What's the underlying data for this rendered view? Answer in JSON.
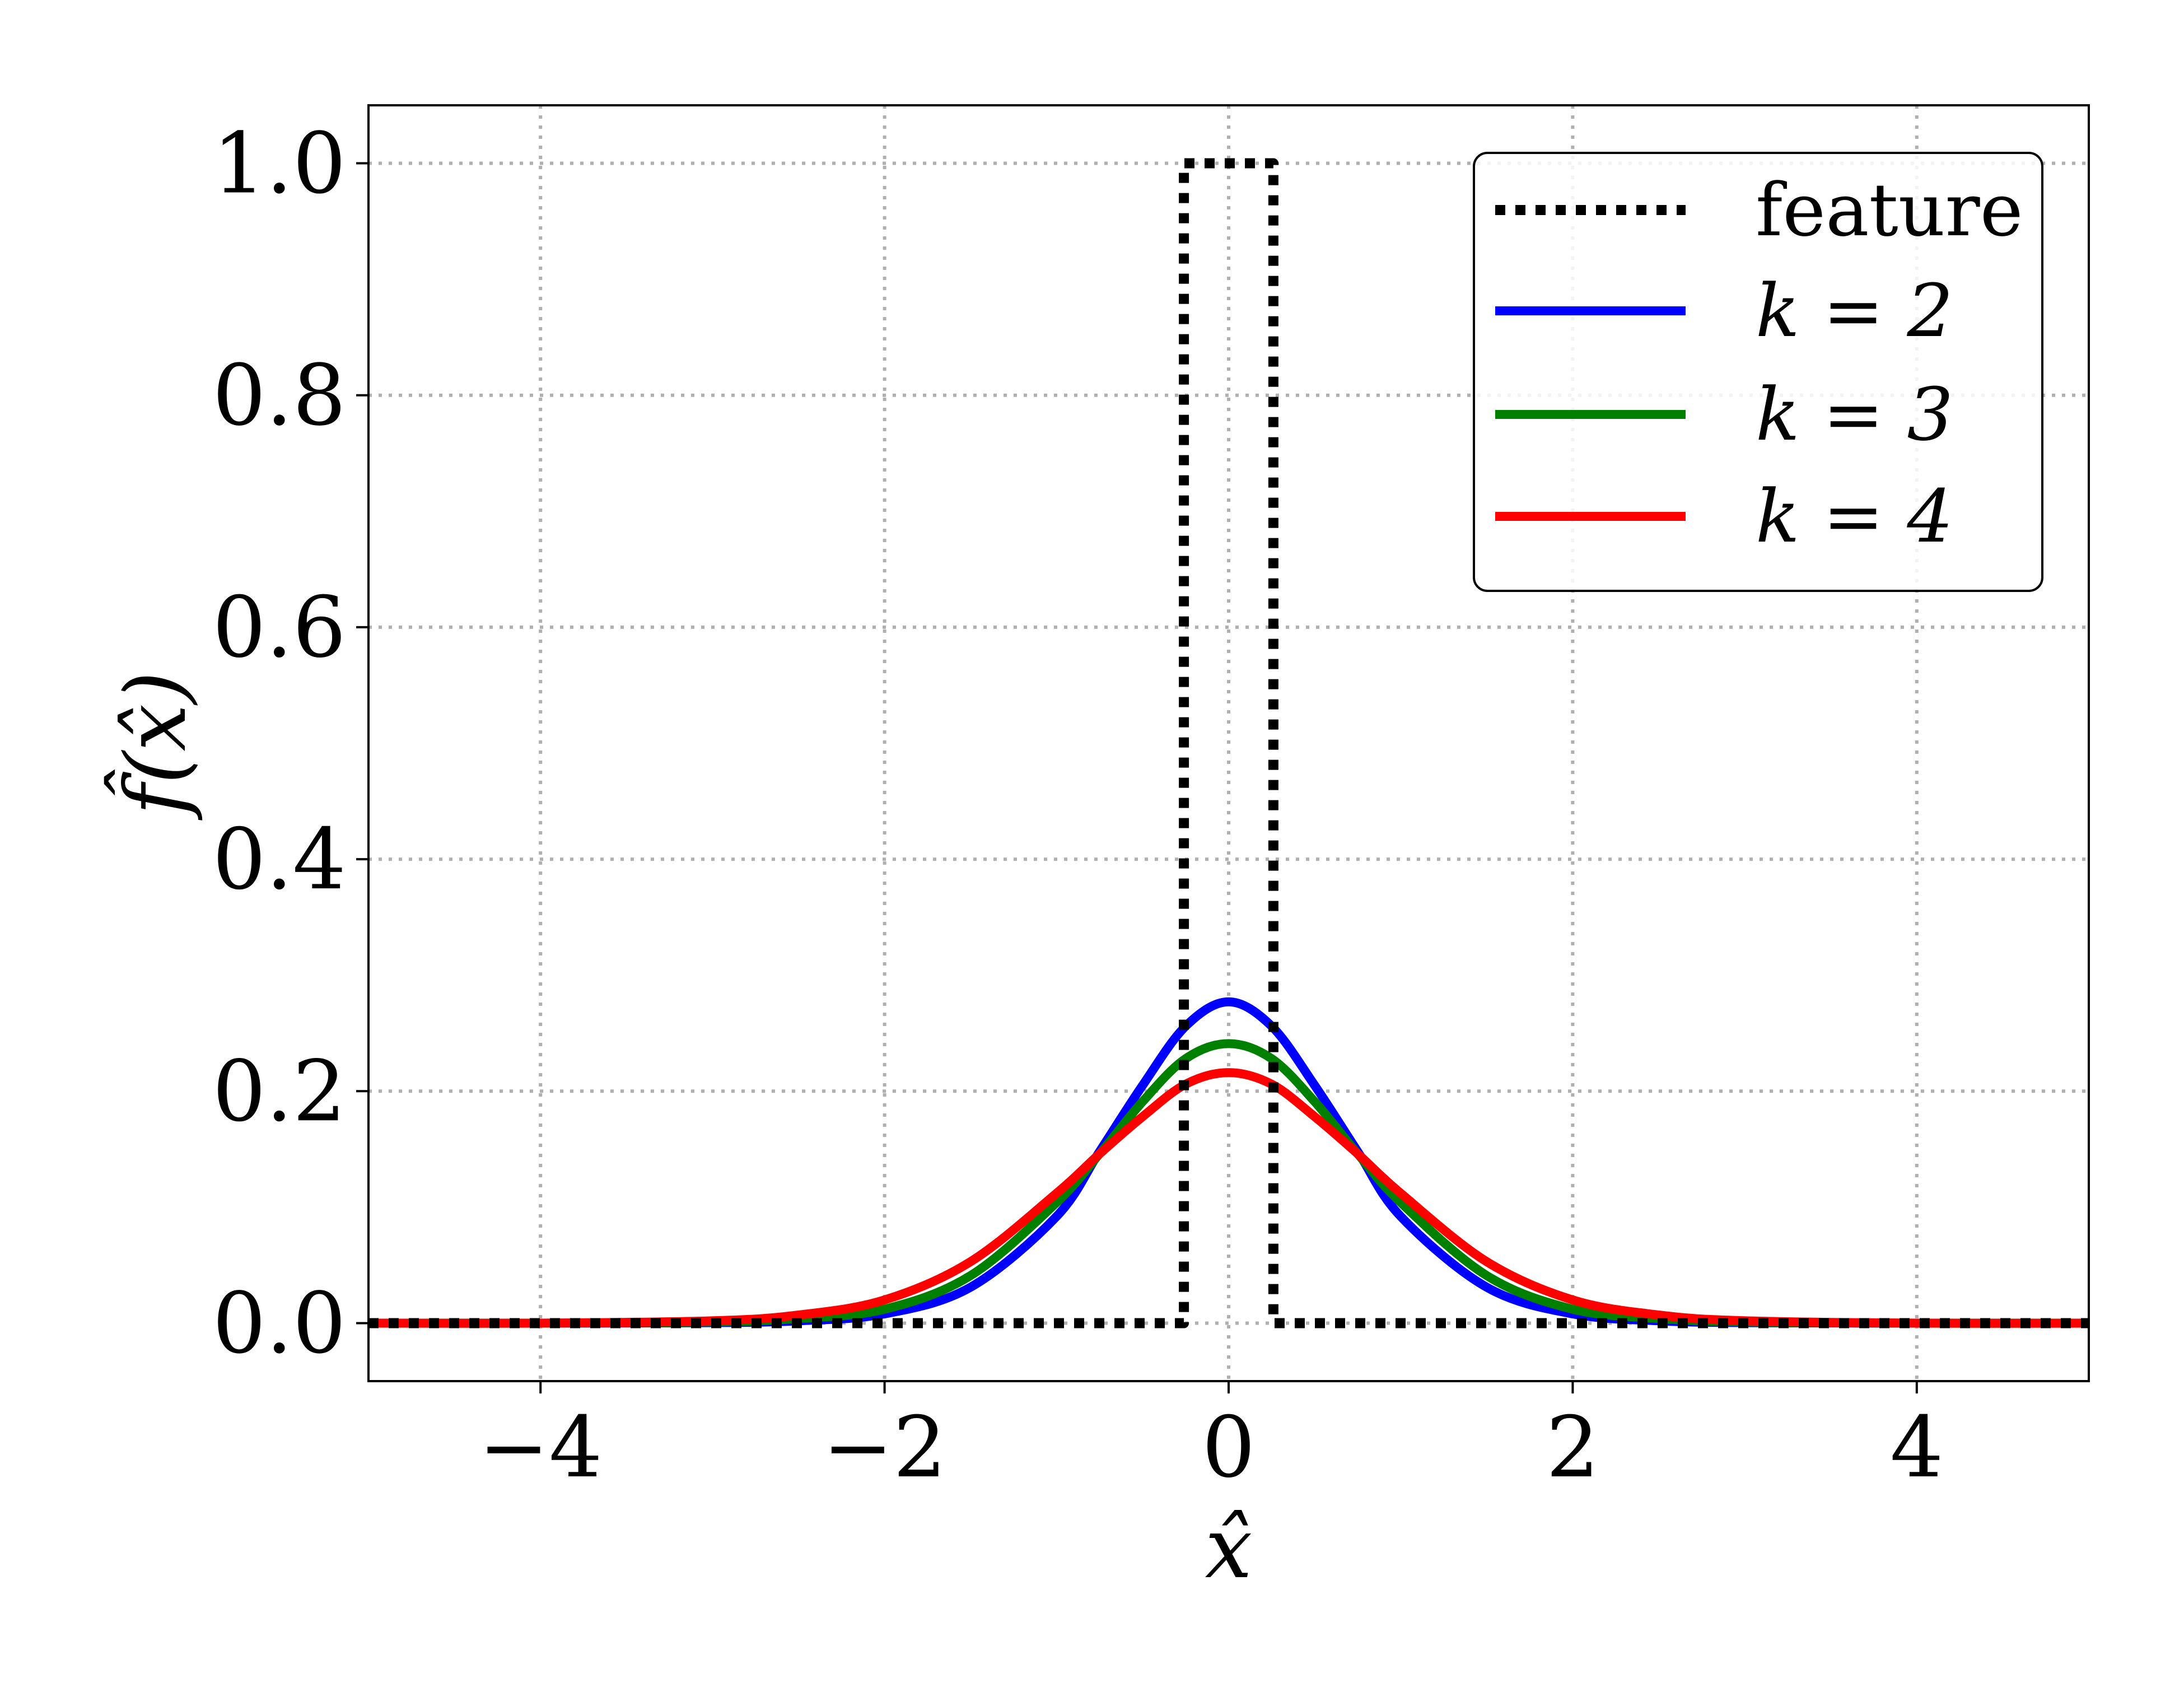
{
  "chart_data": {
    "type": "line",
    "xlabel": "x̂",
    "ylabel": "f̂(x̂)",
    "xlim": [
      -5,
      5
    ],
    "ylim": [
      -0.05,
      1.05
    ],
    "xticks": [
      -4,
      -2,
      0,
      2,
      4
    ],
    "xtick_labels": [
      "−4",
      "−2",
      "0",
      "2",
      "4"
    ],
    "yticks": [
      0.0,
      0.2,
      0.4,
      0.6,
      0.8,
      1.0
    ],
    "ytick_labels": [
      "0.0",
      "0.2",
      "0.4",
      "0.6",
      "0.8",
      "1.0"
    ],
    "grid": true,
    "grid_style": "dotted",
    "legend_position": "top-right",
    "series": [
      {
        "name": "feature",
        "color": "#000000",
        "style": "dotted",
        "x": [
          -5,
          -0.26,
          -0.26,
          0.26,
          0.26,
          5
        ],
        "y": [
          0,
          0,
          1.0,
          1.0,
          0,
          0
        ]
      },
      {
        "name": "k = 2",
        "color": "#0000ff",
        "style": "solid",
        "x": [
          -5,
          -4,
          -3,
          -2.5,
          -2,
          -1.5,
          -1,
          -0.75,
          -0.5,
          -0.25,
          0,
          0.25,
          0.5,
          0.75,
          1,
          1.5,
          2,
          2.5,
          3,
          4,
          5
        ],
        "y": [
          0,
          0.0,
          0.0004,
          0.002,
          0.008,
          0.031,
          0.092,
          0.148,
          0.205,
          0.256,
          0.277,
          0.256,
          0.205,
          0.148,
          0.092,
          0.031,
          0.008,
          0.002,
          0.0004,
          0.0,
          0
        ]
      },
      {
        "name": "k = 3",
        "color": "#008000",
        "style": "solid",
        "x": [
          -5,
          -4,
          -3,
          -2.5,
          -2,
          -1.5,
          -1,
          -0.75,
          -0.5,
          -0.25,
          0,
          0.25,
          0.5,
          0.75,
          1,
          1.5,
          2,
          2.5,
          3,
          4,
          5
        ],
        "y": [
          0,
          0.0,
          0.001,
          0.004,
          0.012,
          0.041,
          0.104,
          0.146,
          0.191,
          0.228,
          0.241,
          0.228,
          0.191,
          0.146,
          0.104,
          0.041,
          0.012,
          0.004,
          0.001,
          0.0,
          0
        ]
      },
      {
        "name": "k = 4",
        "color": "#ff0000",
        "style": "solid",
        "x": [
          -5,
          -4,
          -3,
          -2.5,
          -2,
          -1.5,
          -1,
          -0.75,
          -0.5,
          -0.25,
          0,
          0.25,
          0.5,
          0.75,
          1,
          1.5,
          2,
          2.5,
          3,
          4,
          5
        ],
        "y": [
          0,
          0.0,
          0.002,
          0.007,
          0.02,
          0.053,
          0.112,
          0.146,
          0.178,
          0.206,
          0.216,
          0.206,
          0.178,
          0.146,
          0.112,
          0.053,
          0.02,
          0.007,
          0.002,
          0.0,
          0
        ]
      }
    ],
    "legend": [
      {
        "label": "feature",
        "math": false
      },
      {
        "label": "k = 2",
        "math": true
      },
      {
        "label": "k = 3",
        "math": true
      },
      {
        "label": "k = 4",
        "math": true
      }
    ]
  }
}
